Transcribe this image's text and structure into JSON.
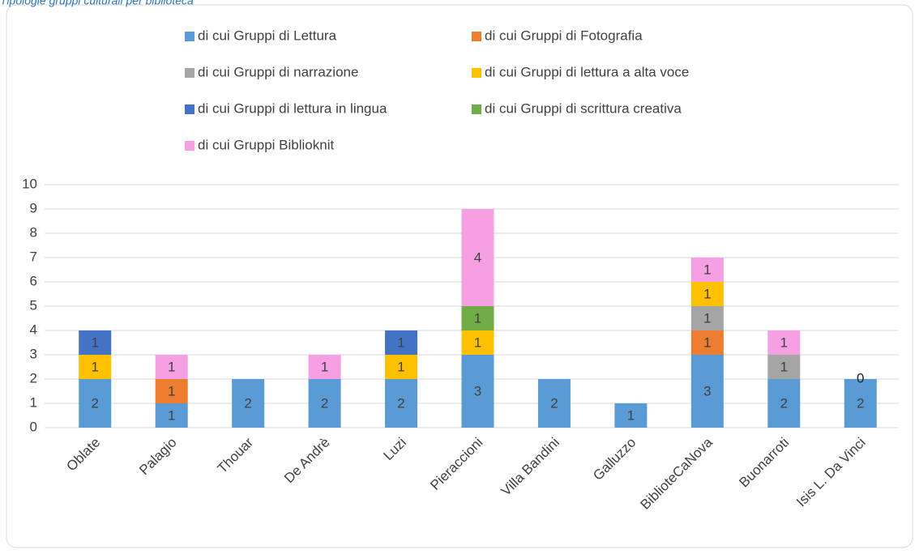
{
  "chart_data": {
    "type": "stacked_bar",
    "title": "Tipologie gruppi culturali per biblioteca",
    "categories": [
      "Oblate",
      "Palagio",
      "Thouar",
      "De Andrè",
      "Luzi",
      "Pieraccioni",
      "Villa Bandini",
      "Galluzzo",
      "BiblioteCaNova",
      "Buonarroti",
      "Isis L. Da Vinci"
    ],
    "series": [
      {
        "name": "di cui Gruppi di Lettura",
        "color": "#5b9bd5",
        "values": [
          2,
          1,
          2,
          2,
          2,
          3,
          2,
          1,
          3,
          2,
          2
        ]
      },
      {
        "name": "di cui Gruppi di Fotografia",
        "color": "#ed7d31",
        "values": [
          null,
          1,
          null,
          null,
          null,
          null,
          null,
          null,
          1,
          null,
          null
        ]
      },
      {
        "name": " di cui Gruppi di narrazione",
        "color": "#a5a5a5",
        "values": [
          null,
          null,
          null,
          null,
          null,
          null,
          null,
          null,
          1,
          1,
          null
        ]
      },
      {
        "name": "di cui Gruppi di lettura a alta voce",
        "color": "#ffc000",
        "values": [
          1,
          null,
          null,
          null,
          1,
          1,
          null,
          null,
          1,
          null,
          null
        ]
      },
      {
        "name": "di cui Gruppi di lettura in lingua",
        "color": "#4472c4",
        "values": [
          1,
          null,
          null,
          null,
          1,
          null,
          null,
          null,
          null,
          null,
          0
        ]
      },
      {
        "name": "di cui Gruppi di scrittura creativa",
        "color": "#70ad47",
        "values": [
          null,
          null,
          null,
          null,
          null,
          1,
          null,
          null,
          null,
          null,
          null
        ]
      },
      {
        "name": "di cui Gruppi Biblioknit",
        "color": "#f4a0e2",
        "values": [
          null,
          1,
          null,
          1,
          null,
          4,
          null,
          null,
          1,
          1,
          null
        ]
      }
    ],
    "ylim": [
      0,
      10
    ],
    "yticks": [
      0,
      1,
      2,
      3,
      4,
      5,
      6,
      7,
      8,
      9,
      10
    ],
    "grid": true
  }
}
